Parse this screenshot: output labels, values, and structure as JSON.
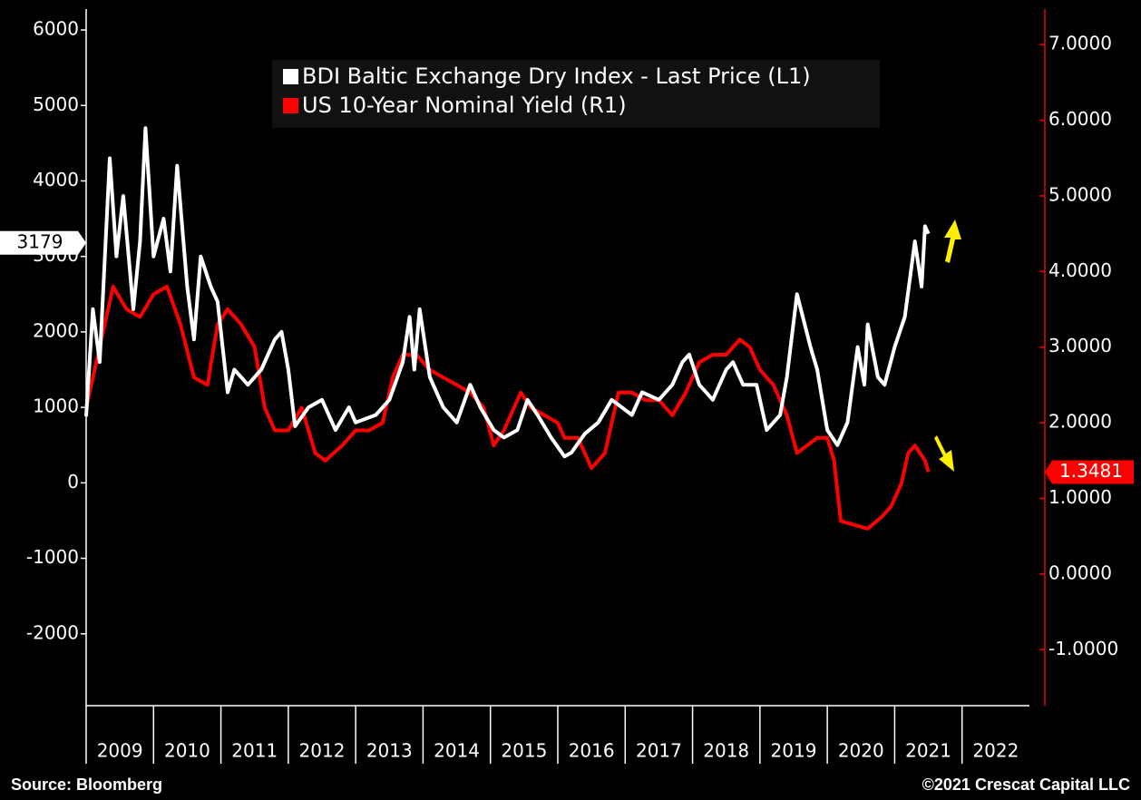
{
  "chart_data": {
    "type": "line",
    "xlim": [
      2009,
      2023
    ],
    "xticks": [
      2009,
      2010,
      2011,
      2012,
      2013,
      2014,
      2015,
      2016,
      2017,
      2018,
      2019,
      2020,
      2021,
      2022
    ],
    "ylim": [
      -2952,
      6277
    ],
    "yticks": [
      -2000,
      -1000,
      0,
      1000,
      2000,
      3000,
      4000,
      5000,
      6000
    ],
    "y2lim": [
      -1.74,
      7.47
    ],
    "y2ticks": [
      {
        "value": -1,
        "label": "-1.0000"
      },
      {
        "value": 0,
        "label": "0.0000"
      },
      {
        "value": 1,
        "label": "1.0000"
      },
      {
        "value": 2,
        "label": "2.0000"
      },
      {
        "value": 3,
        "label": "3.0000"
      },
      {
        "value": 4,
        "label": "4.0000"
      },
      {
        "value": 5,
        "label": "5.0000"
      },
      {
        "value": 6,
        "label": "6.0000"
      },
      {
        "value": 7,
        "label": "7.0000"
      }
    ],
    "series": [
      {
        "name": "US 10-Year Nominal Yield (R1)",
        "color": "#ff0000",
        "axis": "y2",
        "last_value": 1.3481,
        "x": [
          2009.0,
          2009.2,
          2009.4,
          2009.6,
          2009.8,
          2010.0,
          2010.2,
          2010.4,
          2010.6,
          2010.8,
          2010.95,
          2011.1,
          2011.3,
          2011.5,
          2011.65,
          2011.8,
          2012.0,
          2012.2,
          2012.4,
          2012.55,
          2012.8,
          2013.0,
          2013.2,
          2013.4,
          2013.55,
          2013.7,
          2013.9,
          2014.1,
          2014.3,
          2014.5,
          2014.7,
          2014.9,
          2015.05,
          2015.2,
          2015.45,
          2015.6,
          2015.8,
          2016.0,
          2016.1,
          2016.3,
          2016.5,
          2016.7,
          2016.9,
          2017.1,
          2017.3,
          2017.5,
          2017.7,
          2017.9,
          2018.1,
          2018.3,
          2018.5,
          2018.7,
          2018.85,
          2019.0,
          2019.2,
          2019.4,
          2019.55,
          2019.7,
          2019.85,
          2020.0,
          2020.1,
          2020.2,
          2020.4,
          2020.6,
          2020.8,
          2020.95,
          2021.1,
          2021.2,
          2021.3,
          2021.45,
          2021.5
        ],
        "values": [
          2.2,
          3.0,
          3.8,
          3.5,
          3.4,
          3.7,
          3.8,
          3.3,
          2.6,
          2.5,
          3.3,
          3.5,
          3.3,
          3.0,
          2.2,
          1.9,
          1.9,
          2.2,
          1.6,
          1.5,
          1.7,
          1.9,
          1.9,
          2.0,
          2.6,
          2.9,
          2.9,
          2.7,
          2.6,
          2.5,
          2.4,
          2.2,
          1.7,
          1.9,
          2.4,
          2.2,
          2.1,
          2.0,
          1.8,
          1.8,
          1.4,
          1.6,
          2.4,
          2.4,
          2.3,
          2.3,
          2.1,
          2.4,
          2.8,
          2.9,
          2.9,
          3.1,
          3.0,
          2.7,
          2.5,
          2.1,
          1.6,
          1.7,
          1.8,
          1.8,
          1.5,
          0.7,
          0.65,
          0.6,
          0.75,
          0.9,
          1.2,
          1.6,
          1.7,
          1.5,
          1.35
        ]
      },
      {
        "name": "BDI Baltic Exchange Dry Index - Last Price (L1)",
        "color": "#ffffff",
        "last_value": 3179,
        "x": [
          2009.0,
          2009.1,
          2009.2,
          2009.35,
          2009.45,
          2009.55,
          2009.7,
          2009.8,
          2009.88,
          2010.0,
          2010.15,
          2010.25,
          2010.35,
          2010.5,
          2010.6,
          2010.7,
          2010.85,
          2010.95,
          2011.1,
          2011.2,
          2011.4,
          2011.6,
          2011.8,
          2011.9,
          2012.0,
          2012.1,
          2012.3,
          2012.5,
          2012.7,
          2012.9,
          2013.0,
          2013.3,
          2013.5,
          2013.7,
          2013.8,
          2013.87,
          2013.95,
          2014.1,
          2014.3,
          2014.5,
          2014.7,
          2014.85,
          2015.05,
          2015.2,
          2015.4,
          2015.55,
          2015.7,
          2015.9,
          2016.1,
          2016.2,
          2016.4,
          2016.6,
          2016.8,
          2016.95,
          2017.1,
          2017.25,
          2017.5,
          2017.7,
          2017.85,
          2017.95,
          2018.1,
          2018.3,
          2018.5,
          2018.6,
          2018.75,
          2018.95,
          2019.1,
          2019.3,
          2019.4,
          2019.55,
          2019.75,
          2019.85,
          2020.0,
          2020.15,
          2020.3,
          2020.45,
          2020.55,
          2020.6,
          2020.75,
          2020.85,
          2021.0,
          2021.15,
          2021.3,
          2021.4,
          2021.45,
          2021.5
        ],
        "values": [
          880,
          2300,
          1600,
          4300,
          3000,
          3800,
          2300,
          3200,
          4700,
          3000,
          3500,
          2800,
          4200,
          2600,
          1900,
          3000,
          2600,
          2400,
          1200,
          1500,
          1300,
          1500,
          1900,
          2000,
          1500,
          750,
          1000,
          1100,
          700,
          1000,
          800,
          900,
          1100,
          1600,
          2200,
          1500,
          2300,
          1400,
          1000,
          800,
          1300,
          1000,
          700,
          600,
          700,
          1100,
          900,
          600,
          350,
          400,
          650,
          800,
          1100,
          1000,
          900,
          1200,
          1100,
          1300,
          1600,
          1700,
          1300,
          1100,
          1500,
          1600,
          1300,
          1300,
          700,
          900,
          1400,
          2500,
          1800,
          1500,
          700,
          500,
          800,
          1800,
          1300,
          2100,
          1400,
          1300,
          1800,
          2200,
          3200,
          2600,
          3400,
          3300
        ]
      }
    ],
    "source": "Source: Bloomberg",
    "credit": "©2021 Crescat Capital LLC"
  }
}
